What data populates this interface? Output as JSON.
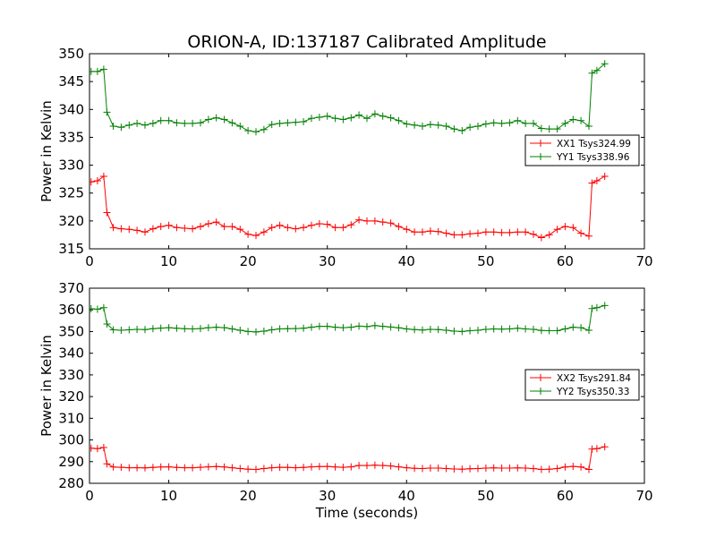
{
  "title": "ORION-A, ID:137187 Calibrated Amplitude",
  "colors": {
    "XX": "#ff0000",
    "YY": "#008000"
  },
  "chart_data": [
    {
      "type": "line",
      "xlabel": "",
      "ylabel": "Power in Kelvin",
      "xlim": [
        0,
        70
      ],
      "ylim": [
        315,
        350
      ],
      "xticks": [
        "0",
        "10",
        "20",
        "30",
        "40",
        "50",
        "60",
        "70"
      ],
      "yticks": [
        "315",
        "320",
        "325",
        "330",
        "335",
        "340",
        "345",
        "350"
      ],
      "legend_position": "center-right",
      "series": [
        {
          "name": "XX1 Tsys324.99",
          "color": "#ff0000",
          "x": [
            0.2,
            1.0,
            1.8,
            2.2,
            3,
            4,
            5,
            6,
            7,
            8,
            9,
            10,
            11,
            12,
            13,
            14,
            15,
            16,
            17,
            18,
            19,
            20,
            21,
            22,
            23,
            24,
            25,
            26,
            27,
            28,
            29,
            30,
            31,
            32,
            33,
            34,
            35,
            36,
            37,
            38,
            39,
            40,
            41,
            42,
            43,
            44,
            45,
            46,
            47,
            48,
            49,
            50,
            51,
            52,
            53,
            54,
            55,
            56,
            57,
            58,
            59,
            60,
            61,
            62,
            63,
            63.4,
            64,
            65
          ],
          "y": [
            327,
            327.2,
            328,
            321.5,
            318.8,
            318.6,
            318.5,
            318.3,
            318,
            318.6,
            319,
            319.2,
            318.8,
            318.7,
            318.6,
            319,
            319.5,
            319.8,
            319,
            319,
            318.5,
            317.6,
            317.4,
            318,
            318.8,
            319.2,
            318.8,
            318.6,
            318.8,
            319.2,
            319.5,
            319.4,
            318.8,
            318.8,
            319.3,
            320.2,
            320,
            320,
            319.8,
            319.6,
            319,
            318.5,
            318,
            318,
            318.2,
            318.1,
            317.8,
            317.5,
            317.5,
            317.7,
            317.8,
            318,
            318,
            317.9,
            317.9,
            318,
            318,
            317.6,
            317,
            317.5,
            318.5,
            319,
            318.8,
            317.8,
            317.3,
            326.8,
            327.2,
            328
          ]
        },
        {
          "name": "YY1 Tsys338.96",
          "color": "#008000",
          "x": [
            0.2,
            1.0,
            1.8,
            2.2,
            3,
            4,
            5,
            6,
            7,
            8,
            9,
            10,
            11,
            12,
            13,
            14,
            15,
            16,
            17,
            18,
            19,
            20,
            21,
            22,
            23,
            24,
            25,
            26,
            27,
            28,
            29,
            30,
            31,
            32,
            33,
            34,
            35,
            36,
            37,
            38,
            39,
            40,
            41,
            42,
            43,
            44,
            45,
            46,
            47,
            48,
            49,
            50,
            51,
            52,
            53,
            54,
            55,
            56,
            57,
            58,
            59,
            60,
            61,
            62,
            63,
            63.4,
            64,
            65
          ],
          "y": [
            346.8,
            346.8,
            347.2,
            339.5,
            337,
            336.8,
            337.2,
            337.5,
            337.2,
            337.5,
            338,
            338,
            337.6,
            337.5,
            337.5,
            337.6,
            338.2,
            338.5,
            338.2,
            337.6,
            337,
            336.2,
            336,
            336.4,
            337.3,
            337.5,
            337.6,
            337.7,
            337.8,
            338.4,
            338.6,
            338.8,
            338.4,
            338.2,
            338.5,
            339,
            338.4,
            339.2,
            338.8,
            338.5,
            338,
            337.4,
            337.2,
            337,
            337.3,
            337.2,
            337,
            336.5,
            336.2,
            336.8,
            337,
            337.4,
            337.6,
            337.5,
            337.6,
            338,
            337.5,
            337.5,
            336.6,
            336.5,
            336.5,
            337.5,
            338.2,
            338,
            337,
            346.5,
            347,
            348.2
          ]
        }
      ]
    },
    {
      "type": "line",
      "xlabel": "Time (seconds)",
      "ylabel": "Power in Kelvin",
      "xlim": [
        0,
        70
      ],
      "ylim": [
        280,
        370
      ],
      "xticks": [
        "0",
        "10",
        "20",
        "30",
        "40",
        "50",
        "60",
        "70"
      ],
      "yticks": [
        "280",
        "290",
        "300",
        "310",
        "320",
        "330",
        "340",
        "350",
        "360",
        "370"
      ],
      "legend_position": "center-right",
      "series": [
        {
          "name": "XX2 Tsys291.84",
          "color": "#ff0000",
          "x": [
            0.2,
            1.0,
            1.8,
            2.2,
            3,
            4,
            5,
            6,
            7,
            8,
            9,
            10,
            11,
            12,
            13,
            14,
            15,
            16,
            17,
            18,
            19,
            20,
            21,
            22,
            23,
            24,
            25,
            26,
            27,
            28,
            29,
            30,
            31,
            32,
            33,
            34,
            35,
            36,
            37,
            38,
            39,
            40,
            41,
            42,
            43,
            44,
            45,
            46,
            47,
            48,
            49,
            50,
            51,
            52,
            53,
            54,
            55,
            56,
            57,
            58,
            59,
            60,
            61,
            62,
            63,
            63.4,
            64,
            65
          ],
          "y": [
            296.2,
            296,
            296.5,
            289,
            287.5,
            287.4,
            287.2,
            287.2,
            287.1,
            287.3,
            287.5,
            287.6,
            287.3,
            287.2,
            287.2,
            287.4,
            287.6,
            287.7,
            287.5,
            287.2,
            286.8,
            286.5,
            286.4,
            286.8,
            287.2,
            287.4,
            287.3,
            287.2,
            287.3,
            287.6,
            287.7,
            287.8,
            287.5,
            287.4,
            287.6,
            288.2,
            288.2,
            288.4,
            288.2,
            288,
            287.6,
            287.2,
            286.9,
            286.8,
            287,
            287,
            286.8,
            286.6,
            286.5,
            286.7,
            286.8,
            287,
            287.1,
            287,
            287,
            287.1,
            287,
            286.8,
            286.4,
            286.5,
            286.8,
            287.5,
            287.8,
            287.5,
            286.4,
            295.8,
            296,
            296.8
          ]
        },
        {
          "name": "YY2 Tsys350.33",
          "color": "#008000",
          "x": [
            0.2,
            1.0,
            1.8,
            2.2,
            3,
            4,
            5,
            6,
            7,
            8,
            9,
            10,
            11,
            12,
            13,
            14,
            15,
            16,
            17,
            18,
            19,
            20,
            21,
            22,
            23,
            24,
            25,
            26,
            27,
            28,
            29,
            30,
            31,
            32,
            33,
            34,
            35,
            36,
            37,
            38,
            39,
            40,
            41,
            42,
            43,
            44,
            45,
            46,
            47,
            48,
            49,
            50,
            51,
            52,
            53,
            54,
            55,
            56,
            57,
            58,
            59,
            60,
            61,
            62,
            63,
            63.4,
            64,
            65
          ],
          "y": [
            360.5,
            360.3,
            361,
            353.5,
            350.8,
            350.6,
            350.8,
            351,
            350.9,
            351.3,
            351.6,
            351.8,
            351.5,
            351.3,
            351.2,
            351.4,
            351.8,
            352,
            351.8,
            351.2,
            350.6,
            350,
            349.8,
            350.2,
            350.8,
            351.2,
            351.3,
            351.4,
            351.5,
            352,
            352.4,
            352.4,
            352,
            351.8,
            352,
            352.5,
            352.3,
            352.8,
            352.4,
            352.1,
            351.7,
            351.2,
            350.9,
            350.7,
            351,
            350.9,
            350.6,
            350.2,
            350,
            350.4,
            350.6,
            351,
            351.2,
            351.1,
            351.2,
            351.5,
            351.2,
            351,
            350.5,
            350.4,
            350.4,
            351.2,
            352,
            351.8,
            350.6,
            360.6,
            361,
            362
          ]
        }
      ]
    }
  ]
}
